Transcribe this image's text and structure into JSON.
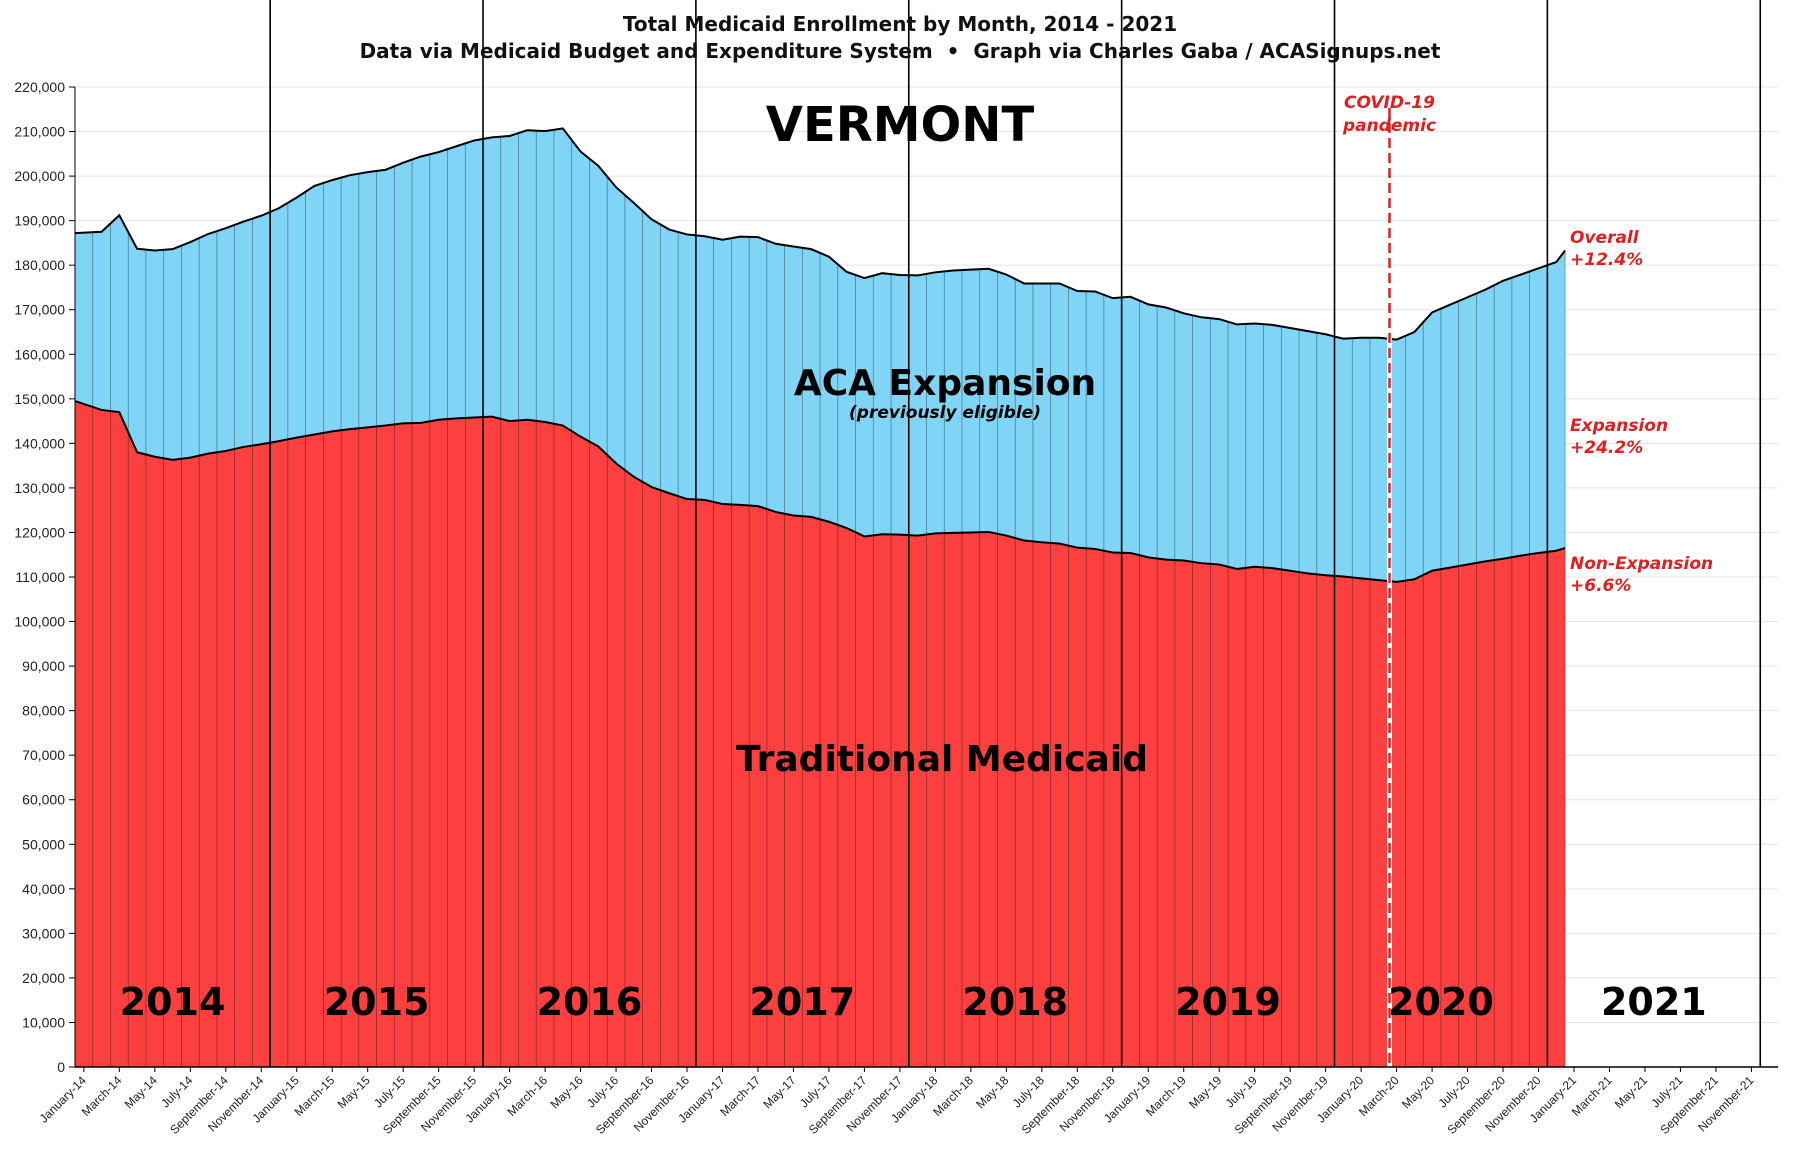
{
  "colors": {
    "expansion_fill": "#80d4f6",
    "traditional_fill": "#fc4040",
    "annotation": "#e02020",
    "gridline": "#e4e4e4",
    "outline": "#000000"
  },
  "chart_data": {
    "type": "area",
    "stacked": true,
    "title": "Total Medicaid Enrollment by Month, 2014 - 2021",
    "subtitle": "Data via Medicaid Budget and Expenditure System  •  Graph via Charles Gaba / ACASignups.net",
    "state_label": "VERMONT",
    "ylim": [
      0,
      220000
    ],
    "y_ticks": [
      "0",
      "10,000",
      "20,000",
      "30,000",
      "40,000",
      "50,000",
      "60,000",
      "70,000",
      "80,000",
      "90,000",
      "100,000",
      "110,000",
      "120,000",
      "130,000",
      "140,000",
      "150,000",
      "160,000",
      "170,000",
      "180,000",
      "190,000",
      "200,000",
      "210,000",
      "220,000"
    ],
    "x_tick_labels": [
      "January-14",
      "March-14",
      "May-14",
      "July-14",
      "September-14",
      "November-14",
      "January-15",
      "March-15",
      "May-15",
      "July-15",
      "September-15",
      "November-15",
      "January-16",
      "March-16",
      "May-16",
      "July-16",
      "September-16",
      "November-16",
      "January-17",
      "March-17",
      "May-17",
      "July-17",
      "September-17",
      "November-17",
      "January-18",
      "March-18",
      "May-18",
      "July-18",
      "September-18",
      "November-18",
      "January-19",
      "March-19",
      "May-19",
      "July-19",
      "September-19",
      "November-19",
      "January-20",
      "March-20",
      "May-20",
      "July-20",
      "September-20",
      "November-20",
      "January-21",
      "March-21",
      "May-21",
      "July-21",
      "September-21",
      "November-21"
    ],
    "year_labels": [
      "2014",
      "2015",
      "2016",
      "2017",
      "2018",
      "2019",
      "2020",
      "2021"
    ],
    "grid": true,
    "series": [
      {
        "name": "Traditional Medicaid",
        "values": [
          149500,
          147500,
          147000,
          138000,
          137000,
          136300,
          136800,
          137700,
          138300,
          139200,
          139800,
          140500,
          141300,
          142000,
          142700,
          143200,
          143600,
          144000,
          144500,
          144600,
          145300,
          145600,
          145800,
          146000,
          145000,
          145300,
          144800,
          144000,
          141500,
          139300,
          135500,
          132500,
          130200,
          128800,
          127500,
          127300,
          126400,
          126200,
          125900,
          124600,
          123800,
          123500,
          122400,
          121000,
          119100,
          119600,
          119500,
          119300,
          119800,
          119900,
          120000,
          120100,
          119300,
          118200,
          117800,
          117500,
          116600,
          116300,
          115500,
          115400,
          114400,
          113900,
          113700,
          113100,
          112800,
          111800,
          112300,
          112000,
          111400,
          110800,
          110400,
          110100,
          109700,
          109300,
          108900,
          109500,
          111400,
          112100,
          112800,
          113500,
          114100,
          114800,
          115400,
          115900,
          116500
        ]
      },
      {
        "name": "ACA Expansion",
        "subtitle": "(previously eligible)",
        "values": [
          37700,
          40000,
          44200,
          45700,
          46300,
          47300,
          48400,
          49300,
          50000,
          50600,
          51300,
          52300,
          53900,
          55800,
          56400,
          57000,
          57300,
          57400,
          58500,
          59800,
          60100,
          61100,
          62200,
          62700,
          64000,
          65000,
          65300,
          66700,
          64000,
          63000,
          62000,
          61500,
          60100,
          59200,
          59400,
          59200,
          59300,
          60200,
          60400,
          60200,
          60400,
          60100,
          59500,
          57500,
          58000,
          58600,
          58300,
          58400,
          58600,
          58900,
          59000,
          59100,
          58600,
          57700,
          58100,
          58400,
          57600,
          57800,
          57100,
          57500,
          56800,
          56600,
          55500,
          55200,
          55100,
          54900,
          54600,
          54600,
          54500,
          54400,
          54100,
          53400,
          54000,
          54400,
          54400,
          55500,
          58000,
          59000,
          60000,
          61000,
          62400,
          63100,
          63900,
          64800,
          66800
        ]
      }
    ],
    "annotations": {
      "covid": "COVID-19 pandemic",
      "overall_label": "Overall",
      "overall_change": "+12.4%",
      "expansion_label": "Expansion",
      "expansion_change": "+24.2%",
      "nonexpansion_label": "Non-Expansion",
      "nonexpansion_change": "+6.6%"
    }
  }
}
